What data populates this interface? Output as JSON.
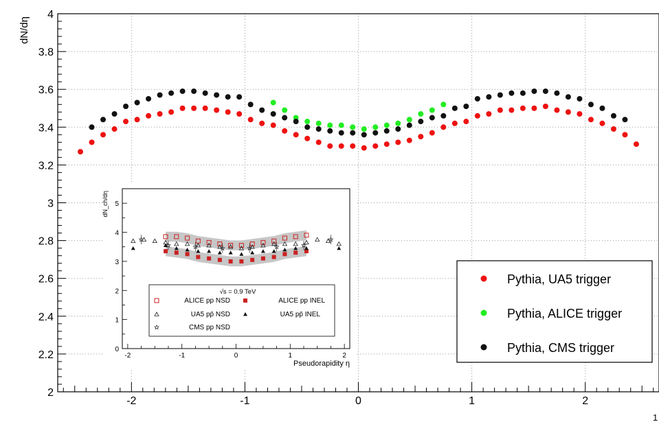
{
  "chart_data": [
    {
      "type": "scatter",
      "title": "",
      "xlabel": "",
      "ylabel": "dN/dη",
      "xlim": [
        -2.65,
        2.65
      ],
      "ylim": [
        2,
        4
      ],
      "grid": true,
      "legend_position": "bottom-right",
      "x_ticks": [
        "-2",
        "-1",
        "0",
        "1",
        "2"
      ],
      "y_ticks": [
        "2",
        "2.2",
        "2.4",
        "2.6",
        "2.8",
        "3",
        "3.2",
        "3.4",
        "3.6",
        "3.8",
        "4"
      ],
      "corner_label": "1",
      "series": [
        {
          "name": "Pythia, UA5 trigger",
          "color": "#ee1111",
          "x": [
            -2.45,
            -2.35,
            -2.25,
            -2.15,
            -2.05,
            -1.95,
            -1.85,
            -1.75,
            -1.65,
            -1.55,
            -1.45,
            -1.35,
            -1.25,
            -1.15,
            -1.05,
            -0.95,
            -0.85,
            -0.75,
            -0.65,
            -0.55,
            -0.45,
            -0.35,
            -0.25,
            -0.15,
            -0.05,
            0.05,
            0.15,
            0.25,
            0.35,
            0.45,
            0.55,
            0.65,
            0.75,
            0.85,
            0.95,
            1.05,
            1.15,
            1.25,
            1.35,
            1.45,
            1.55,
            1.65,
            1.75,
            1.85,
            1.95,
            2.05,
            2.15,
            2.25,
            2.35,
            2.45
          ],
          "y": [
            3.27,
            3.32,
            3.36,
            3.39,
            3.43,
            3.44,
            3.46,
            3.47,
            3.48,
            3.5,
            3.5,
            3.5,
            3.49,
            3.48,
            3.47,
            3.44,
            3.42,
            3.41,
            3.38,
            3.36,
            3.34,
            3.32,
            3.3,
            3.3,
            3.3,
            3.29,
            3.3,
            3.31,
            3.32,
            3.33,
            3.35,
            3.37,
            3.4,
            3.42,
            3.43,
            3.46,
            3.47,
            3.49,
            3.49,
            3.5,
            3.5,
            3.51,
            3.49,
            3.48,
            3.47,
            3.44,
            3.42,
            3.39,
            3.36,
            3.31
          ]
        },
        {
          "name": "Pythia, ALICE trigger",
          "color": "#22ee22",
          "x": [
            -0.75,
            -0.65,
            -0.55,
            -0.45,
            -0.35,
            -0.25,
            -0.15,
            -0.05,
            0.05,
            0.15,
            0.25,
            0.35,
            0.45,
            0.55,
            0.65,
            0.75
          ],
          "y": [
            3.53,
            3.49,
            3.45,
            3.43,
            3.42,
            3.41,
            3.41,
            3.4,
            3.39,
            3.4,
            3.41,
            3.42,
            3.44,
            3.47,
            3.49,
            3.52
          ]
        },
        {
          "name": "Pythia, CMS trigger",
          "color": "#111111",
          "x": [
            -2.35,
            -2.25,
            -2.15,
            -2.05,
            -1.95,
            -1.85,
            -1.75,
            -1.65,
            -1.55,
            -1.45,
            -1.35,
            -1.25,
            -1.15,
            -1.05,
            -0.95,
            -0.85,
            -0.75,
            -0.65,
            -0.55,
            -0.45,
            -0.35,
            -0.25,
            -0.15,
            -0.05,
            0.05,
            0.15,
            0.25,
            0.35,
            0.45,
            0.55,
            0.65,
            0.75,
            0.85,
            0.95,
            1.05,
            1.15,
            1.25,
            1.35,
            1.45,
            1.55,
            1.65,
            1.75,
            1.85,
            1.95,
            2.05,
            2.15,
            2.25,
            2.35
          ],
          "y": [
            3.4,
            3.44,
            3.47,
            3.51,
            3.53,
            3.55,
            3.57,
            3.58,
            3.59,
            3.59,
            3.58,
            3.57,
            3.56,
            3.56,
            3.52,
            3.49,
            3.47,
            3.45,
            3.43,
            3.4,
            3.39,
            3.38,
            3.37,
            3.37,
            3.36,
            3.37,
            3.38,
            3.39,
            3.41,
            3.43,
            3.45,
            3.46,
            3.5,
            3.51,
            3.55,
            3.56,
            3.57,
            3.58,
            3.58,
            3.59,
            3.59,
            3.58,
            3.56,
            3.55,
            3.52,
            3.5,
            3.46,
            3.44
          ]
        }
      ]
    },
    {
      "type": "scatter",
      "title": "",
      "xlabel": "Pseudorapidity η",
      "ylabel": "dN_ch/dη",
      "xlim": [
        -2.1,
        2.1
      ],
      "ylim": [
        0,
        5.5
      ],
      "x_ticks": [
        "-2",
        "-1",
        "0",
        "1",
        "2"
      ],
      "y_ticks": [
        "0",
        "1",
        "2",
        "3",
        "4",
        "5"
      ],
      "legend_header": "√s = 0.9 TeV",
      "series": [
        {
          "name": "ALICE pp NSD",
          "marker": "open-square",
          "color": "#cc2222",
          "x": [
            -1.3,
            -1.1,
            -0.9,
            -0.7,
            -0.5,
            -0.3,
            -0.1,
            0.1,
            0.3,
            0.5,
            0.7,
            0.9,
            1.1,
            1.3
          ],
          "y": [
            3.85,
            3.85,
            3.8,
            3.7,
            3.65,
            3.6,
            3.55,
            3.55,
            3.6,
            3.65,
            3.7,
            3.8,
            3.85,
            3.9
          ]
        },
        {
          "name": "ALICE pp INEL",
          "marker": "filled-square",
          "color": "#cc2222",
          "x": [
            -1.3,
            -1.1,
            -0.9,
            -0.7,
            -0.5,
            -0.3,
            -0.1,
            0.1,
            0.3,
            0.5,
            0.7,
            0.9,
            1.1,
            1.3
          ],
          "y": [
            3.35,
            3.3,
            3.25,
            3.15,
            3.1,
            3.05,
            3.0,
            3.0,
            3.05,
            3.1,
            3.15,
            3.25,
            3.3,
            3.35
          ]
        },
        {
          "name": "UA5 pp̄ NSD",
          "marker": "open-triangle",
          "color": "#222222",
          "x": [
            -1.9,
            -1.7,
            -1.5,
            -1.3,
            -1.1,
            -0.9,
            -0.7,
            -0.5,
            -0.3,
            -0.1,
            0.1,
            0.3,
            0.5,
            0.7,
            0.9,
            1.1,
            1.3,
            1.5,
            1.7,
            1.9
          ],
          "y": [
            3.7,
            3.75,
            3.7,
            3.65,
            3.6,
            3.6,
            3.55,
            3.55,
            3.5,
            3.5,
            3.45,
            3.5,
            3.55,
            3.6,
            3.6,
            3.6,
            3.65,
            3.75,
            3.7,
            3.6
          ]
        },
        {
          "name": "UA5 pp̄ INEL",
          "marker": "filled-triangle",
          "color": "#111111",
          "x": [
            -1.9,
            -1.3,
            -1.1,
            -0.9,
            -0.7,
            -0.5,
            -0.3,
            -0.1,
            0.1,
            0.3,
            0.5,
            0.7,
            0.9,
            1.1,
            1.3,
            1.9
          ],
          "y": [
            3.45,
            3.55,
            3.45,
            3.4,
            3.35,
            3.35,
            3.3,
            3.3,
            3.25,
            3.3,
            3.35,
            3.35,
            3.4,
            3.45,
            3.45,
            3.45
          ]
        },
        {
          "name": "CMS pp NSD",
          "marker": "star",
          "color": "#333333",
          "x": [
            -1.75,
            -1.25,
            -0.75,
            -0.25,
            0.25,
            0.75,
            1.25,
            1.75
          ],
          "y": [
            3.75,
            3.55,
            3.5,
            3.45,
            3.45,
            3.5,
            3.55,
            3.75
          ]
        }
      ]
    }
  ]
}
